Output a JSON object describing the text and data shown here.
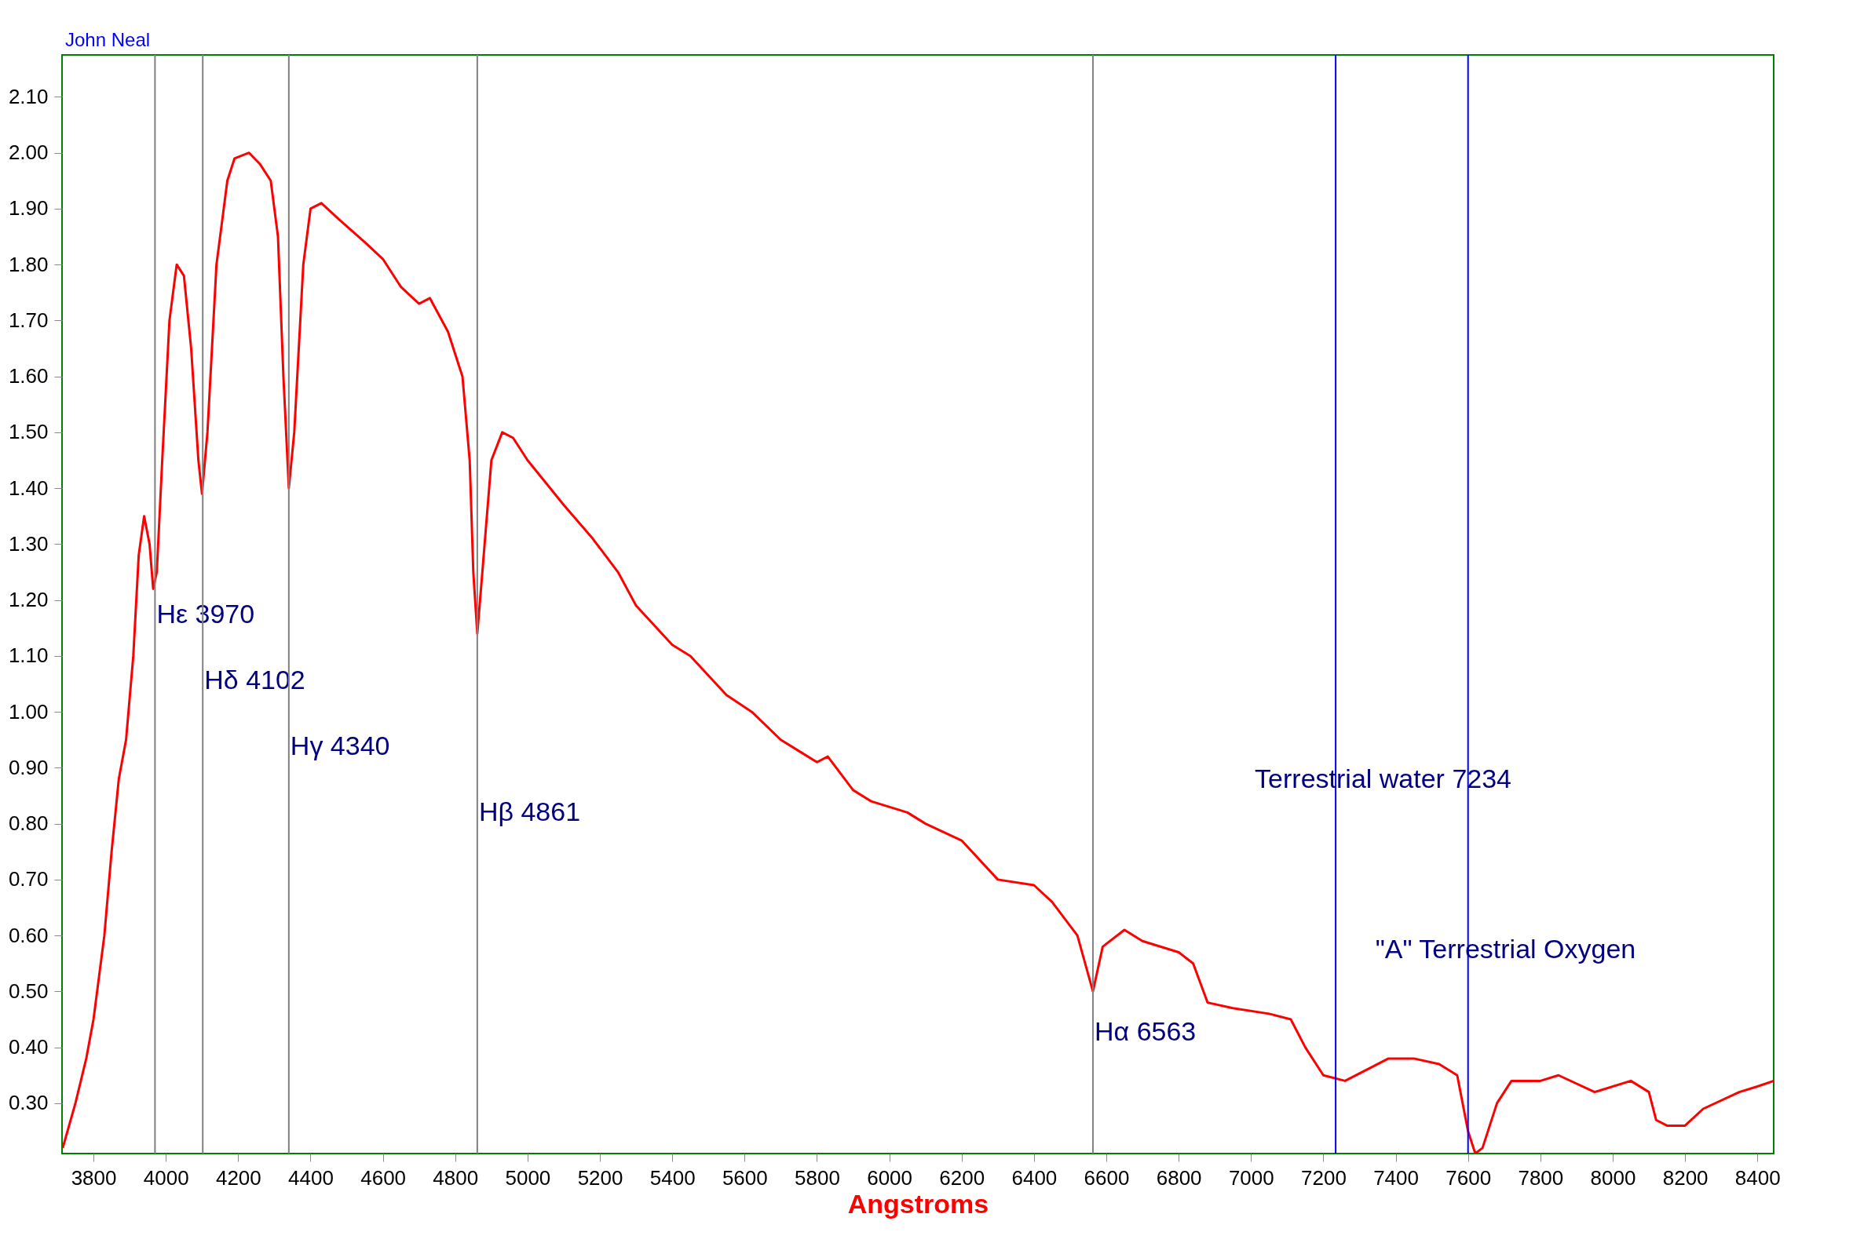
{
  "chart_data": {
    "type": "line",
    "xlabel": "Angstroms",
    "annotations": [
      "John Neal"
    ],
    "xlim": [
      3713,
      8445
    ],
    "ylim": [
      0.21,
      2.175
    ],
    "xticks": [
      3800,
      4000,
      4200,
      4400,
      4600,
      4800,
      5000,
      5200,
      5400,
      5600,
      5800,
      6000,
      6200,
      6400,
      6600,
      6800,
      7000,
      7200,
      7400,
      7600,
      7800,
      8000,
      8200,
      8400
    ],
    "yticks": [
      {
        "value": 0.3,
        "label": "0.30"
      },
      {
        "value": 0.4,
        "label": "0.40"
      },
      {
        "value": 0.5,
        "label": "0.50"
      },
      {
        "value": 0.6,
        "label": "0.60"
      },
      {
        "value": 0.7,
        "label": "0.70"
      },
      {
        "value": 0.8,
        "label": "0.80"
      },
      {
        "value": 0.9,
        "label": "0.90"
      },
      {
        "value": 1.0,
        "label": "1.00"
      },
      {
        "value": 1.1,
        "label": "1.10"
      },
      {
        "value": 1.2,
        "label": "1.20"
      },
      {
        "value": 1.3,
        "label": "1.30"
      },
      {
        "value": 1.4,
        "label": "1.40"
      },
      {
        "value": 1.5,
        "label": "1.50"
      },
      {
        "value": 1.6,
        "label": "1.60"
      },
      {
        "value": 1.7,
        "label": "1.70"
      },
      {
        "value": 1.8,
        "label": "1.80"
      },
      {
        "value": 1.9,
        "label": "1.90"
      },
      {
        "value": 2.0,
        "label": "2.00"
      },
      {
        "value": 2.1,
        "label": "2.10"
      }
    ],
    "grid": false,
    "series": [
      {
        "color": "#ff0000",
        "x": [
          3715,
          3750,
          3780,
          3800,
          3830,
          3850,
          3870,
          3890,
          3910,
          3925,
          3940,
          3955,
          3965,
          3975,
          3990,
          4010,
          4030,
          4050,
          4070,
          4090,
          4100,
          4115,
          4140,
          4170,
          4190,
          4230,
          4260,
          4290,
          4310,
          4325,
          4340,
          4355,
          4380,
          4400,
          4430,
          4480,
          4550,
          4600,
          4650,
          4700,
          4730,
          4780,
          4820,
          4840,
          4850,
          4861,
          4875,
          4900,
          4930,
          4960,
          5000,
          5050,
          5100,
          5180,
          5250,
          5300,
          5400,
          5450,
          5550,
          5620,
          5700,
          5800,
          5830,
          5900,
          5950,
          6050,
          6100,
          6200,
          6300,
          6400,
          6450,
          6520,
          6563,
          6590,
          6650,
          6700,
          6800,
          6840,
          6880,
          6950,
          7050,
          7110,
          7150,
          7200,
          7260,
          7320,
          7380,
          7450,
          7520,
          7570,
          7600,
          7620,
          7640,
          7680,
          7720,
          7800,
          7850,
          7950,
          8050,
          8100,
          8120,
          8150,
          8200,
          8250,
          8350,
          8400,
          8445
        ],
        "values": [
          0.22,
          0.3,
          0.38,
          0.45,
          0.6,
          0.75,
          0.88,
          0.95,
          1.1,
          1.28,
          1.35,
          1.3,
          1.22,
          1.25,
          1.45,
          1.7,
          1.8,
          1.78,
          1.65,
          1.45,
          1.39,
          1.5,
          1.8,
          1.95,
          1.99,
          2.0,
          1.98,
          1.95,
          1.85,
          1.6,
          1.4,
          1.5,
          1.8,
          1.9,
          1.91,
          1.88,
          1.84,
          1.81,
          1.76,
          1.73,
          1.74,
          1.68,
          1.6,
          1.45,
          1.25,
          1.14,
          1.25,
          1.45,
          1.5,
          1.49,
          1.45,
          1.41,
          1.37,
          1.31,
          1.25,
          1.19,
          1.12,
          1.1,
          1.03,
          1.0,
          0.95,
          0.91,
          0.92,
          0.86,
          0.84,
          0.82,
          0.8,
          0.77,
          0.7,
          0.69,
          0.66,
          0.6,
          0.5,
          0.58,
          0.61,
          0.59,
          0.57,
          0.55,
          0.48,
          0.47,
          0.46,
          0.45,
          0.4,
          0.35,
          0.34,
          0.36,
          0.38,
          0.38,
          0.37,
          0.35,
          0.25,
          0.21,
          0.22,
          0.3,
          0.34,
          0.34,
          0.35,
          0.32,
          0.34,
          0.32,
          0.27,
          0.26,
          0.26,
          0.29,
          0.32,
          0.33,
          0.34
        ]
      }
    ],
    "ref_lines": [
      {
        "axis": "x",
        "value": 3970,
        "label": "Hε 3970",
        "color": "#808080"
      },
      {
        "axis": "x",
        "value": 4102,
        "label": "Hδ 4102",
        "color": "#808080"
      },
      {
        "axis": "x",
        "value": 4340,
        "label": "Hγ 4340",
        "color": "#808080"
      },
      {
        "axis": "x",
        "value": 4861,
        "label": "Hβ 4861",
        "color": "#808080"
      },
      {
        "axis": "x",
        "value": 6563,
        "label": "Hα 6563",
        "color": "#808080"
      },
      {
        "axis": "x",
        "value": 7234,
        "label": "Terrestrial water 7234",
        "color": "#0000ff"
      },
      {
        "axis": "x",
        "value": 7600,
        "label": "\"A\" Terrestrial Oxygen",
        "color": "#0000ff"
      }
    ]
  }
}
